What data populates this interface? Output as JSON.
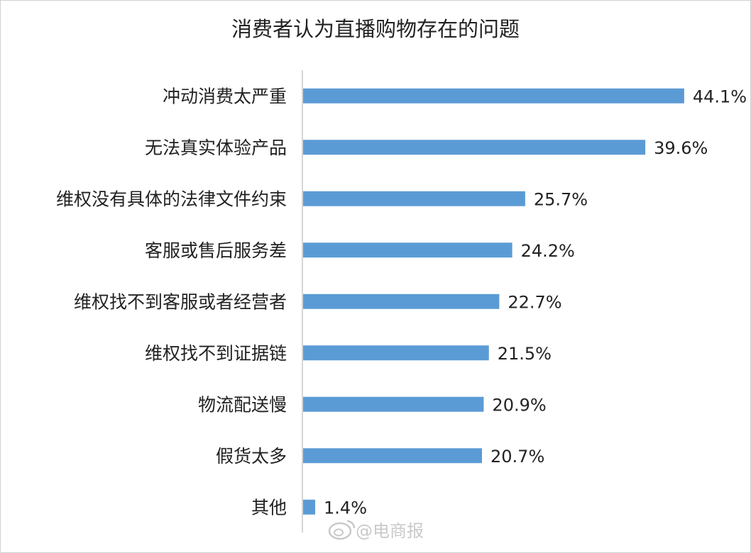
{
  "chart_data": {
    "type": "bar",
    "orientation": "horizontal",
    "title": "消费者认为直播购物存在的问题",
    "categories": [
      "冲动消费太严重",
      "无法真实体验产品",
      "维权没有具体的法律文件约束",
      "客服或售后服务差",
      "维权找不到客服或者经营者",
      "维权找不到证据链",
      "物流配送慢",
      "假货太多",
      "其他"
    ],
    "values": [
      44.1,
      39.6,
      25.7,
      24.2,
      22.7,
      21.5,
      20.9,
      20.7,
      1.4
    ],
    "value_labels": [
      "44.1%",
      "39.6%",
      "25.7%",
      "24.2%",
      "22.7%",
      "21.5%",
      "20.9%",
      "20.7%",
      "1.4%"
    ],
    "xlim": [
      0,
      46
    ],
    "grid": false,
    "legend": "none",
    "bar_color": "#5b9bd5"
  },
  "watermark": {
    "text": "@电商报",
    "icon": "weibo-icon"
  }
}
